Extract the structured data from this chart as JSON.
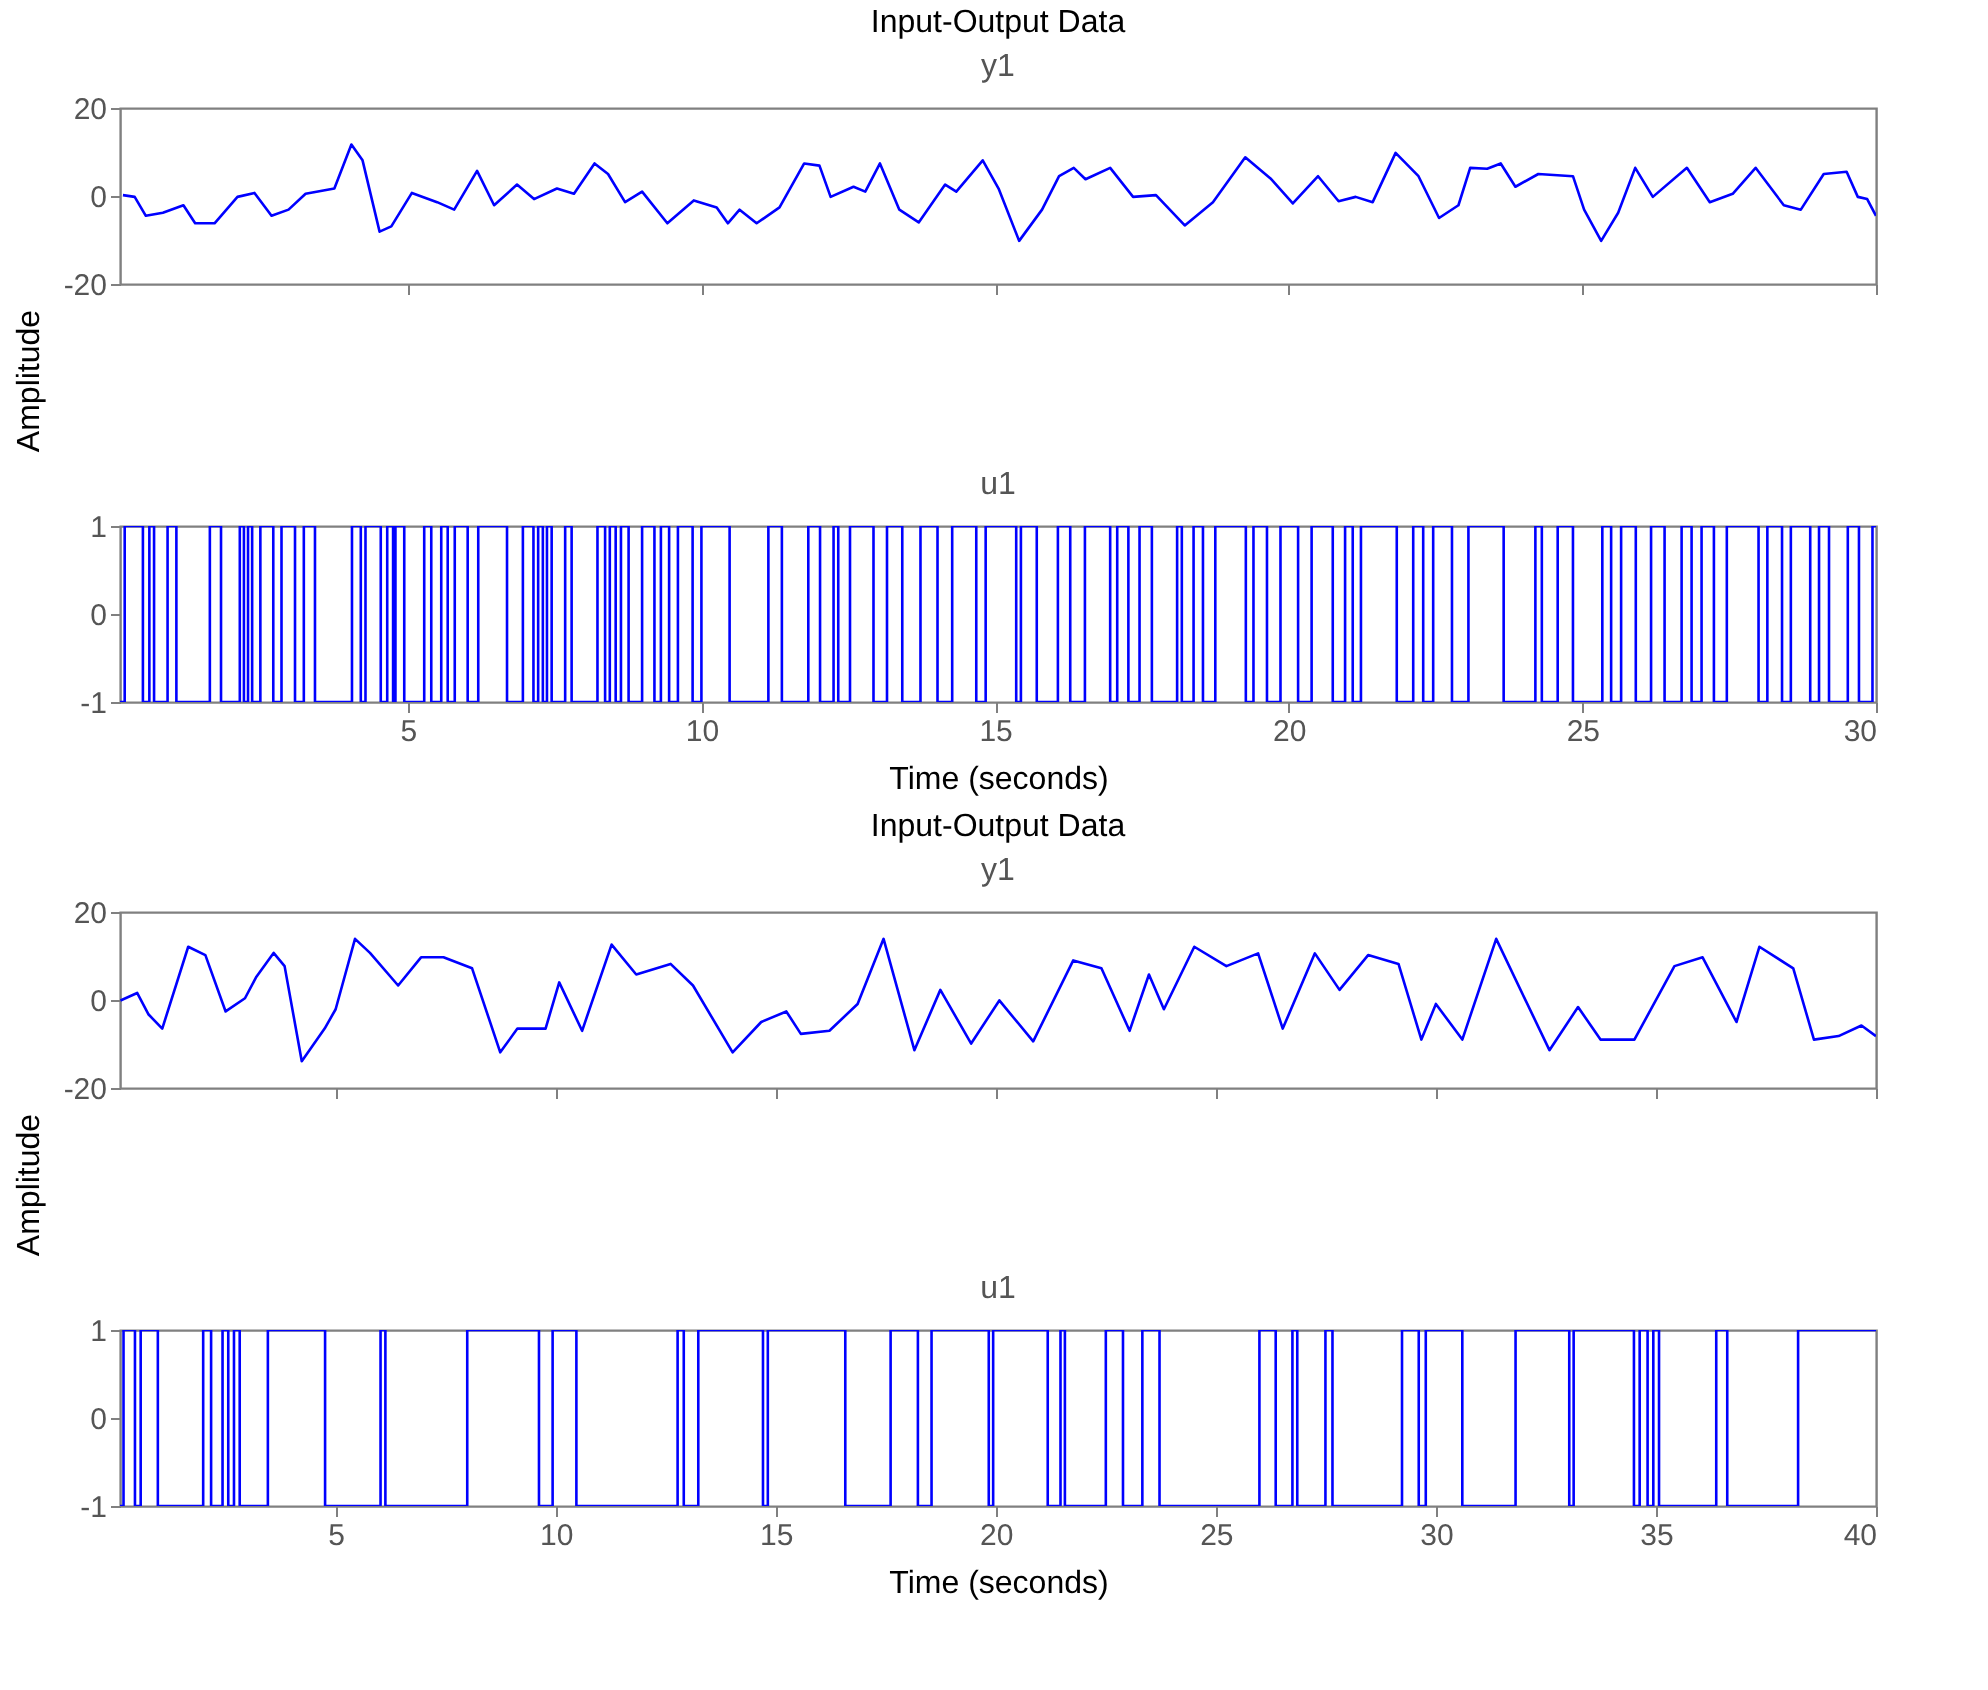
{
  "chart_data": [
    {
      "type": "line",
      "title": "Input-Output Data",
      "subtitle": "y1",
      "ylabel": "Amplitude",
      "xlim": [
        0.1,
        30
      ],
      "xticks": [
        5,
        10,
        15,
        20,
        25,
        30
      ],
      "ylim": [
        -20,
        20
      ],
      "yticks": [
        -20,
        0,
        20
      ],
      "grid": false,
      "tick_labels": "y",
      "x": [
        0.15,
        0.35,
        0.54,
        0.83,
        1.18,
        1.38,
        1.71,
        2.1,
        2.39,
        2.68,
        2.97,
        3.26,
        3.75,
        4.04,
        4.23,
        4.52,
        4.72,
        5.07,
        5.5,
        5.79,
        6.18,
        6.47,
        6.86,
        7.15,
        7.54,
        7.83,
        8.18,
        8.41,
        8.7,
        8.99,
        9.42,
        9.87,
        10.26,
        10.45,
        10.65,
        10.94,
        11.33,
        11.75,
        12.01,
        12.2,
        12.59,
        12.79,
        13.04,
        13.37,
        13.7,
        14.15,
        14.34,
        14.79,
        15.06,
        15.41,
        15.8,
        16.09,
        16.34,
        16.54,
        16.96,
        17.35,
        17.74,
        18.23,
        18.71,
        19.26,
        19.69,
        20.07,
        20.5,
        20.85,
        21.14,
        21.43,
        21.82,
        22.21,
        22.56,
        22.89,
        23.09,
        23.38,
        23.61,
        23.86,
        24.25,
        24.84,
        25.03,
        25.32,
        25.61,
        25.9,
        26.2,
        26.78,
        27.17,
        27.56,
        27.95,
        28.43,
        28.72,
        29.11,
        29.5,
        29.69,
        29.85,
        30.0
      ],
      "series": [
        {
          "color": "#0000ff",
          "values": [
            0.2,
            -0.2,
            -4.5,
            -3.8,
            -2.1,
            -6.2,
            -6.2,
            -0.2,
            0.7,
            -4.5,
            -3.1,
            0.5,
            1.7,
            11.7,
            8.1,
            -8.1,
            -6.9,
            0.7,
            -1.4,
            -3.1,
            5.7,
            -2.1,
            2.6,
            -0.7,
            1.7,
            0.5,
            7.4,
            5.0,
            -1.4,
            1.0,
            -6.2,
            -1.0,
            -2.6,
            -6.2,
            -3.1,
            -6.2,
            -2.6,
            7.4,
            6.9,
            -0.2,
            2.1,
            1.0,
            7.4,
            -3.1,
            -6.0,
            2.6,
            1.0,
            8.1,
            1.7,
            -10.2,
            -3.1,
            4.5,
            6.4,
            3.8,
            6.4,
            -0.2,
            0.2,
            -6.7,
            -1.4,
            8.8,
            4.0,
            -1.7,
            4.5,
            -1.2,
            -0.2,
            -1.4,
            9.8,
            4.5,
            -5.0,
            -2.1,
            6.4,
            6.2,
            7.4,
            2.1,
            5.0,
            4.5,
            -3.1,
            -10.2,
            -3.8,
            6.4,
            -0.2,
            6.4,
            -1.4,
            0.5,
            6.4,
            -2.1,
            -3.1,
            5.0,
            5.5,
            -0.2,
            -0.7,
            -4.5
          ]
        }
      ]
    },
    {
      "type": "step",
      "title": "u1",
      "xlabel": "Time (seconds)",
      "xlim": [
        0.1,
        30
      ],
      "xticks": [
        5,
        10,
        15,
        20,
        25,
        30
      ],
      "ylim": [
        -1,
        1
      ],
      "yticks": [
        -1,
        0,
        1
      ],
      "grid": false,
      "x": [
        0.1,
        0.18,
        0.49,
        0.6,
        0.68,
        0.91,
        1.06,
        1.63,
        1.82,
        2.14,
        2.21,
        2.28,
        2.35,
        2.49,
        2.71,
        2.85,
        3.08,
        3.23,
        3.42,
        4.05,
        4.2,
        4.28,
        4.54,
        4.65,
        4.75,
        4.79,
        4.94,
        5.28,
        5.4,
        5.57,
        5.68,
        5.8,
        6.02,
        6.2,
        6.69,
        6.96,
        7.14,
        7.22,
        7.3,
        7.37,
        7.45,
        7.68,
        7.79,
        8.23,
        8.36,
        8.44,
        8.54,
        8.63,
        8.76,
        8.99,
        9.2,
        9.31,
        9.45,
        9.6,
        9.85,
        10.0,
        10.48,
        11.14,
        11.37,
        11.82,
        12.02,
        12.25,
        12.33,
        12.53,
        12.93,
        13.16,
        13.42,
        13.73,
        14.02,
        14.27,
        14.68,
        14.84,
        15.36,
        15.44,
        15.71,
        16.07,
        16.28,
        16.53,
        16.96,
        17.08,
        17.27,
        17.46,
        17.67,
        18.1,
        18.18,
        18.38,
        18.54,
        18.75,
        19.27,
        19.4,
        19.63,
        19.86,
        20.16,
        20.39,
        20.75,
        20.96,
        21.09,
        21.23,
        21.84,
        22.12,
        22.29,
        22.46,
        22.78,
        23.06,
        23.66,
        24.2,
        24.31,
        24.58,
        24.84,
        25.34,
        25.49,
        25.66,
        25.91,
        26.17,
        26.4,
        26.69,
        26.86,
        27.03,
        27.24,
        27.46,
        28.0,
        28.15,
        28.4,
        28.55,
        28.88,
        29.03,
        29.2,
        29.52,
        29.71,
        29.94,
        30
      ],
      "series": [
        {
          "color": "#0000ff",
          "values": [
            -1,
            1,
            -1,
            1,
            -1,
            1,
            -1,
            1,
            -1,
            1,
            -1,
            1,
            -1,
            1,
            -1,
            1,
            -1,
            1,
            -1,
            1,
            -1,
            1,
            -1,
            1,
            -1,
            1,
            -1,
            1,
            -1,
            1,
            -1,
            1,
            -1,
            1,
            -1,
            1,
            -1,
            1,
            -1,
            1,
            -1,
            1,
            -1,
            1,
            -1,
            1,
            -1,
            1,
            -1,
            1,
            -1,
            1,
            -1,
            1,
            -1,
            1,
            -1,
            1,
            -1,
            1,
            -1,
            1,
            -1,
            1,
            -1,
            1,
            -1,
            1,
            -1,
            1,
            -1,
            1,
            -1,
            1,
            -1,
            1,
            -1,
            1,
            -1,
            1,
            -1,
            1,
            -1,
            1,
            -1,
            1,
            -1,
            1,
            -1,
            1,
            -1,
            1,
            -1,
            1,
            -1,
            1,
            -1,
            1,
            -1,
            1,
            -1,
            1,
            -1,
            1,
            -1,
            1,
            -1,
            1,
            -1,
            1,
            -1,
            1,
            -1,
            1,
            -1,
            1,
            -1,
            1,
            -1,
            1,
            -1,
            1,
            -1,
            1,
            -1,
            1,
            -1,
            1,
            -1,
            1,
            1
          ]
        }
      ]
    },
    {
      "type": "line",
      "title": "Input-Output Data",
      "subtitle": "y1",
      "ylabel": "Amplitude",
      "xlim": [
        0.1,
        40
      ],
      "xticks": [
        5,
        10,
        15,
        20,
        25,
        30,
        35,
        40
      ],
      "ylim": [
        -20,
        20
      ],
      "yticks": [
        -20,
        0,
        20
      ],
      "grid": false,
      "tick_labels": "y",
      "x": [
        0.11,
        0.49,
        0.75,
        1.06,
        1.65,
        2.04,
        2.5,
        2.94,
        3.2,
        3.59,
        3.84,
        4.23,
        4.75,
        5.0,
        5.44,
        5.78,
        6.42,
        6.94,
        7.45,
        8.1,
        8.74,
        9.13,
        9.77,
        10.08,
        10.6,
        11.27,
        11.83,
        12.61,
        13.12,
        14.02,
        14.67,
        15.24,
        15.57,
        16.22,
        16.86,
        17.45,
        18.15,
        18.74,
        19.44,
        20.08,
        20.85,
        21.76,
        22.4,
        23.04,
        23.48,
        23.82,
        24.51,
        25.24,
        25.96,
        26.52,
        27.25,
        27.81,
        28.46,
        29.15,
        29.67,
        30.0,
        30.6,
        31.37,
        32.58,
        33.23,
        33.74,
        34.51,
        35.42,
        36.06,
        36.83,
        37.35,
        38.12,
        38.59,
        39.15,
        39.67,
        40.0
      ],
      "series": [
        {
          "color": "#0000ff",
          "values": [
            -0.1,
            1.6,
            -3.3,
            -6.5,
            12.1,
            10.2,
            -2.6,
            0.4,
            5.3,
            10.7,
            7.7,
            -13.9,
            -6.5,
            -2.1,
            13.9,
            10.7,
            3.3,
            9.7,
            9.7,
            7.2,
            -11.9,
            -6.5,
            -6.5,
            4.0,
            -7.0,
            12.6,
            5.8,
            8.2,
            3.3,
            -11.9,
            -5.0,
            -2.6,
            -7.7,
            -7.0,
            -0.9,
            13.9,
            -11.4,
            2.3,
            -9.9,
            -0.1,
            -9.4,
            9.0,
            7.2,
            -7.0,
            5.8,
            -2.1,
            12.1,
            7.7,
            10.6,
            -6.5,
            10.6,
            2.3,
            10.2,
            8.2,
            -9.0,
            -0.9,
            -9.0,
            13.9,
            -11.4,
            -1.6,
            -9.0,
            -9.0,
            7.7,
            9.7,
            -5.0,
            12.1,
            7.2,
            -9.0,
            -8.2,
            -5.8,
            -8.2
          ]
        }
      ]
    },
    {
      "type": "step",
      "title": "u1",
      "xlabel": "Time (seconds)",
      "xlim": [
        0.1,
        40
      ],
      "xticks": [
        5,
        10,
        15,
        20,
        25,
        30,
        35,
        40
      ],
      "ylim": [
        -1,
        1
      ],
      "yticks": [
        -1,
        0,
        1
      ],
      "grid": false,
      "x": [
        0.1,
        0.18,
        0.44,
        0.57,
        0.96,
        1.99,
        2.17,
        2.43,
        2.56,
        2.69,
        2.82,
        3.46,
        4.76,
        6.02,
        6.13,
        7.99,
        9.62,
        9.93,
        10.47,
        12.77,
        12.91,
        13.24,
        14.71,
        14.82,
        16.58,
        17.61,
        18.23,
        18.54,
        19.84,
        19.94,
        21.18,
        21.47,
        21.57,
        22.5,
        22.89,
        23.33,
        23.72,
        25.99,
        26.36,
        26.74,
        26.85,
        27.49,
        27.65,
        29.23,
        29.61,
        29.77,
        30.6,
        31.81,
        33.03,
        33.13,
        34.5,
        34.63,
        34.81,
        34.94,
        35.07,
        36.37,
        36.62,
        38.23,
        40
      ],
      "series": [
        {
          "color": "#0000ff",
          "values": [
            -1,
            1,
            -1,
            1,
            -1,
            1,
            -1,
            1,
            -1,
            1,
            -1,
            1,
            -1,
            1,
            -1,
            1,
            -1,
            1,
            -1,
            1,
            -1,
            1,
            -1,
            1,
            -1,
            1,
            -1,
            1,
            -1,
            1,
            -1,
            1,
            -1,
            1,
            -1,
            1,
            -1,
            1,
            -1,
            1,
            -1,
            1,
            -1,
            1,
            -1,
            1,
            -1,
            1,
            -1,
            1,
            -1,
            1,
            -1,
            1,
            -1,
            1,
            -1,
            1,
            1
          ]
        }
      ]
    }
  ]
}
